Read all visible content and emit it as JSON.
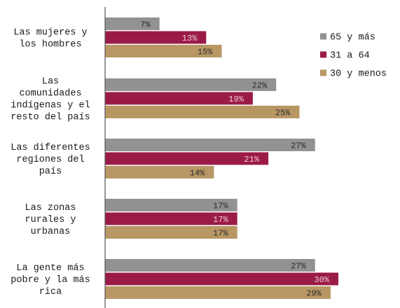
{
  "chart_data": {
    "type": "bar",
    "orientation": "horizontal",
    "categories": [
      [
        "Las mujeres y",
        "los hombres"
      ],
      [
        "Las",
        "comunidades",
        "indígenas y el",
        "resto del país"
      ],
      [
        "Las diferentes",
        "regiones del",
        "país"
      ],
      [
        "Las zonas",
        "rurales y",
        "urbanas"
      ],
      [
        "La gente más",
        "pobre y la más",
        "rica"
      ]
    ],
    "series": [
      {
        "name": "65 y más",
        "color": "#929194",
        "label_color": "#2a2a2a",
        "values": [
          7,
          22,
          27,
          17,
          27
        ],
        "labels": [
          "7%",
          "22%",
          "27%",
          "17%",
          "27%"
        ]
      },
      {
        "name": "31 a 64",
        "color": "#9b1b48",
        "label_color": "#f2c9d6",
        "values": [
          13,
          19,
          21,
          17,
          30
        ],
        "labels": [
          "13%",
          "19%",
          "21%",
          "17%",
          "30%"
        ]
      },
      {
        "name": "30 y menos",
        "color": "#b89764",
        "label_color": "#2a2a2a",
        "values": [
          15,
          25,
          14,
          17,
          29
        ],
        "labels": [
          "15%",
          "25%",
          "14%",
          "17%",
          "29%"
        ]
      }
    ],
    "legend_position": "top-right",
    "grid": false
  }
}
